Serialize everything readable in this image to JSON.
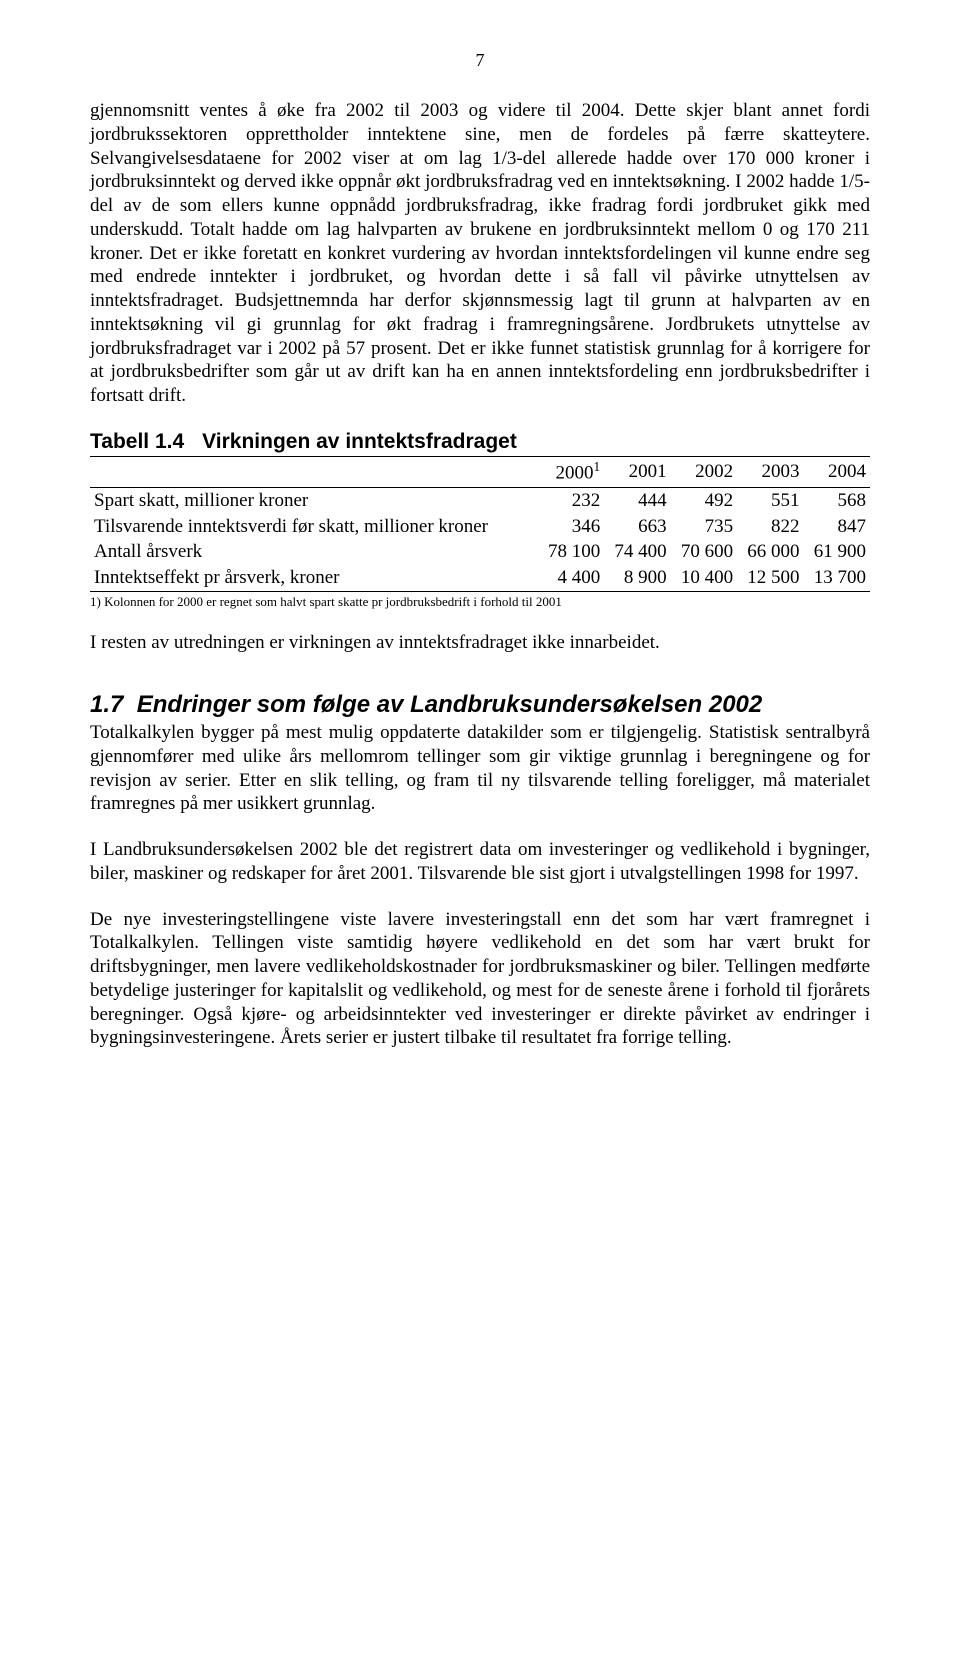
{
  "page_number": "7",
  "paragraphs": {
    "p1": "gjennomsnitt ventes å øke fra 2002 til 2003 og videre til 2004. Dette skjer blant annet fordi jordbrukssektoren opprettholder inntektene sine, men de fordeles på færre skatteytere. Selvangivelsesdataene for 2002 viser at om lag 1/3-del allerede hadde over 170 000 kroner i jordbruksinntekt og derved ikke oppnår økt jordbruksfradrag ved en inntektsøkning. I 2002 hadde 1/5-del av de som ellers kunne oppnådd jordbruksfradrag, ikke fradrag fordi jordbruket gikk med underskudd. Totalt hadde om lag halvparten av brukene en jordbruksinntekt mellom 0 og 170 211 kroner. Det er ikke foretatt en konkret vurdering av hvordan inntektsfordelingen vil kunne endre seg med endrede inntekter i jordbruket, og hvordan dette i så fall vil påvirke utnyttelsen av inntektsfradraget. Budsjettnemnda har derfor skjønnsmessig lagt til grunn at halvparten av en inntektsøkning vil gi grunnlag for økt fradrag i framregningsårene. Jordbrukets utnyttelse av jordbruksfradraget var i 2002 på 57 prosent. Det er ikke funnet statistisk grunnlag for å korrigere for at jordbruksbedrifter som går ut av drift kan ha en annen inntektsfordeling enn jordbruksbedrifter i fortsatt drift.",
    "p2": "I resten av utredningen er virkningen av inntektsfradraget ikke innarbeidet.",
    "p3": "Totalkalkylen bygger på mest mulig oppdaterte datakilder som er tilgjengelig. Statistisk sentralbyrå gjennomfører med ulike års mellomrom tellinger som gir viktige grunnlag i beregningene og for revisjon av serier. Etter en slik telling, og fram til ny tilsvarende telling foreligger, må materialet framregnes på mer usikkert grunnlag.",
    "p4": "I Landbruksundersøkelsen 2002 ble det registrert data om investeringer og vedlikehold i bygninger, biler, maskiner og redskaper for året 2001. Tilsvarende ble sist gjort i utvalgstellingen 1998 for 1997.",
    "p5": "De nye investeringstellingene viste lavere investeringstall enn det som har vært framregnet i Totalkalkylen. Tellingen viste samtidig høyere vedlikehold en det som har vært brukt for driftsbygninger, men lavere vedlikeholdskostnader for jordbruksmaskiner og biler. Tellingen medførte betydelige justeringer for kapitalslit og vedlikehold, og mest for de seneste årene i forhold til fjorårets beregninger. Også kjøre- og arbeidsinntekter ved investeringer er direkte påvirket av endringer i bygningsinvesteringene. Årets serier er justert tilbake til resultatet fra forrige telling."
  },
  "table": {
    "number": "Tabell 1.4",
    "caption": "Virkningen av inntektsfradraget",
    "headers": [
      "",
      "2000",
      "2001",
      "2002",
      "2003",
      "2004"
    ],
    "header_sup": "1",
    "rows": [
      {
        "label": "Spart skatt, millioner kroner",
        "cells": [
          "232",
          "444",
          "492",
          "551",
          "568"
        ]
      },
      {
        "label": "Tilsvarende inntektsverdi før skatt, millioner kroner",
        "cells": [
          "346",
          "663",
          "735",
          "822",
          "847"
        ]
      },
      {
        "label": "Antall årsverk",
        "cells": [
          "78 100",
          "74 400",
          "70 600",
          "66 000",
          "61 900"
        ]
      },
      {
        "label": "Inntektseffekt pr årsverk, kroner",
        "cells": [
          "4 400",
          "8 900",
          "10 400",
          "12 500",
          "13 700"
        ]
      }
    ],
    "footnote": "1) Kolonnen for 2000 er regnet som halvt spart skatte pr jordbruksbedrift i forhold til 2001"
  },
  "section": {
    "number": "1.7",
    "title": "Endringer som følge av Landbruksundersøkelsen 2002"
  }
}
